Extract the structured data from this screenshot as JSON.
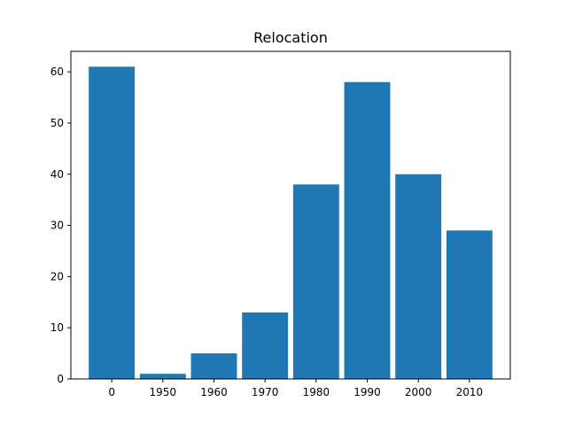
{
  "chart_data": {
    "type": "bar",
    "title": "Relocation",
    "xlabel": "",
    "ylabel": "",
    "categories": [
      "0",
      "1950",
      "1960",
      "1970",
      "1980",
      "1990",
      "2000",
      "2010"
    ],
    "values": [
      61,
      1,
      5,
      13,
      38,
      58,
      40,
      29
    ],
    "ylim": [
      0,
      64
    ],
    "yticks": [
      0,
      10,
      20,
      30,
      40,
      50,
      60
    ],
    "grid": false,
    "colors": {
      "bar": "#1f77b4",
      "axis": "#000000",
      "background": "#ffffff"
    }
  }
}
